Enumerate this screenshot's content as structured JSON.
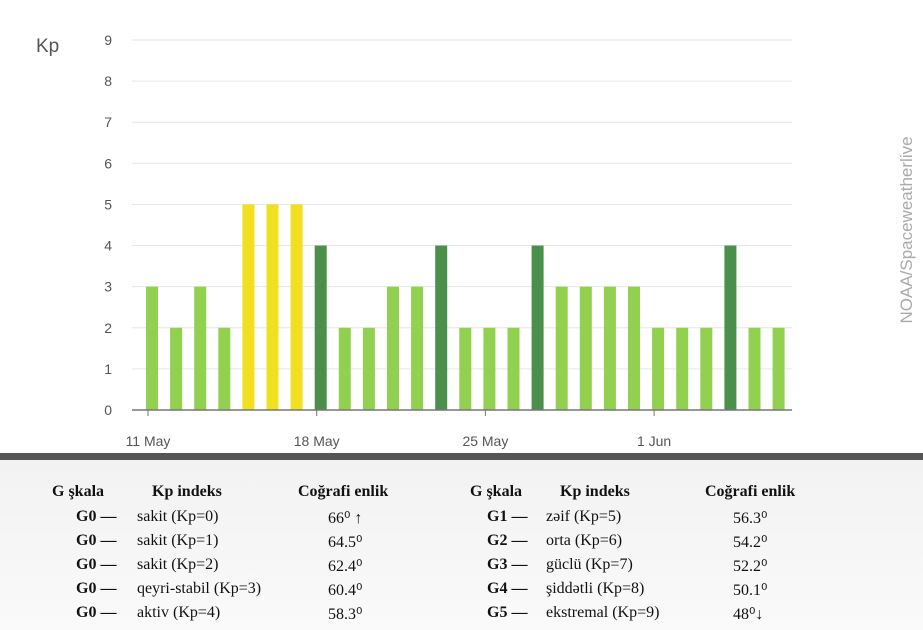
{
  "chart_data": {
    "type": "bar",
    "ylabel": "Kp",
    "ylim": [
      0,
      9
    ],
    "yticks": [
      "0",
      "1",
      "2",
      "3",
      "4",
      "5",
      "6",
      "7",
      "8",
      "9"
    ],
    "xtick_labels": [
      "11 May",
      "18 May",
      "25 May",
      "1 Jun"
    ],
    "values": [
      3,
      2,
      3,
      2,
      5,
      5,
      5,
      4,
      2,
      2,
      3,
      3,
      4,
      2,
      2,
      2,
      4,
      3,
      3,
      3,
      3,
      2,
      2,
      2,
      4,
      2,
      2
    ],
    "colors": {
      "quiet": "#92d050",
      "active": "#4a8f4a",
      "storm": "#f0e020"
    },
    "grid": true,
    "source": "NOAA/Spaceweatherlive"
  },
  "legend": {
    "left": {
      "headers": [
        "G şkala",
        "Kp indeks",
        "Coğrafi enlik"
      ],
      "rows": [
        {
          "g": "G0 —",
          "kp": "sakit (Kp=0)",
          "lat": "66⁰ ↑"
        },
        {
          "g": "G0 —",
          "kp": "sakit (Kp=1)",
          "lat": "64.5⁰"
        },
        {
          "g": "G0 —",
          "kp": "sakit (Kp=2)",
          "lat": "62.4⁰"
        },
        {
          "g": "G0 —",
          "kp": "qeyri-stabil (Kp=3)",
          "lat": "60.4⁰"
        },
        {
          "g": "G0 —",
          "kp": "aktiv (Kp=4)",
          "lat": "58.3⁰"
        }
      ]
    },
    "right": {
      "headers": [
        "G şkala",
        "Kp indeks",
        "Coğrafi enlik"
      ],
      "rows": [
        {
          "g": "G1 —",
          "kp": "zəif (Kp=5)",
          "lat": "56.3⁰"
        },
        {
          "g": "G2 —",
          "kp": "orta (Kp=6)",
          "lat": "54.2⁰"
        },
        {
          "g": "G3 —",
          "kp": "güclü (Kp=7)",
          "lat": "52.2⁰"
        },
        {
          "g": "G4 —",
          "kp": "şiddətli (Kp=8)",
          "lat": "50.1⁰"
        },
        {
          "g": "G5 —",
          "kp": "ekstremal (Kp=9)",
          "lat": "48⁰↓"
        }
      ]
    }
  }
}
